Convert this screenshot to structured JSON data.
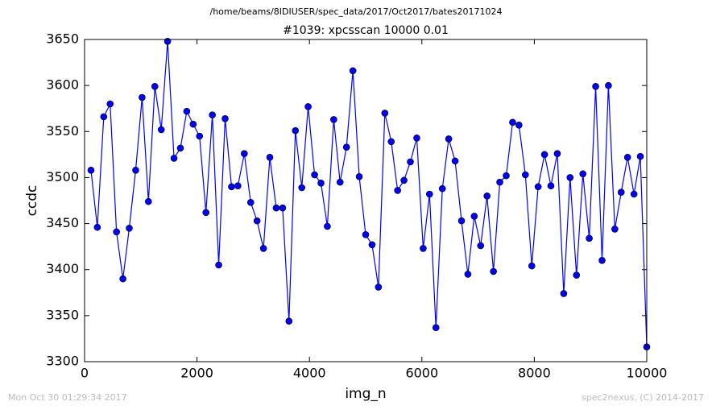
{
  "chart_data": {
    "type": "line",
    "suptitle": "/home/beams/8IDIUSER/spec_data/2017/Oct2017/bates20171024",
    "title": "#1039: xpcsscan 10000 0.01",
    "xlabel": "img_n",
    "ylabel": "ccdc",
    "footer_left": "Mon Oct 30 01:29:34 2017",
    "footer_right": "spec2nexus, (C) 2014-2017",
    "xlim": [
      0,
      10000
    ],
    "xticks": [
      0,
      2000,
      4000,
      6000,
      8000,
      10000
    ],
    "ylim": [
      3300,
      3650
    ],
    "yticks": [
      3300,
      3350,
      3400,
      3450,
      3500,
      3550,
      3600,
      3650
    ],
    "x": [
      114,
      227,
      341,
      455,
      568,
      682,
      795,
      909,
      1023,
      1136,
      1250,
      1364,
      1477,
      1591,
      1705,
      1818,
      1932,
      2045,
      2159,
      2273,
      2386,
      2500,
      2614,
      2727,
      2841,
      2955,
      3068,
      3182,
      3295,
      3409,
      3523,
      3636,
      3750,
      3864,
      3977,
      4091,
      4205,
      4318,
      4432,
      4545,
      4659,
      4773,
      4886,
      5000,
      5114,
      5227,
      5341,
      5455,
      5568,
      5682,
      5795,
      5909,
      6023,
      6136,
      6250,
      6364,
      6477,
      6591,
      6705,
      6818,
      6932,
      7045,
      7159,
      7273,
      7386,
      7500,
      7614,
      7727,
      7841,
      7955,
      8068,
      8182,
      8295,
      8409,
      8523,
      8636,
      8750,
      8864,
      8977,
      9091,
      9205,
      9318,
      9432,
      9545,
      9659,
      9773,
      9886,
      10000
    ],
    "series": [
      {
        "color": "#0000ff",
        "values": [
          3508,
          3446,
          3566,
          3580,
          3441,
          3390,
          3445,
          3508,
          3587,
          3474,
          3599,
          3552,
          3648,
          3521,
          3532,
          3572,
          3558,
          3545,
          3462,
          3568,
          3405,
          3564,
          3490,
          3491,
          3526,
          3473,
          3453,
          3423,
          3522,
          3467,
          3467,
          3344,
          3551,
          3489,
          3577,
          3503,
          3494,
          3447,
          3563,
          3495,
          3533,
          3616,
          3501,
          3438,
          3427,
          3381,
          3570,
          3539,
          3486,
          3497,
          3517,
          3543,
          3423,
          3482,
          3337,
          3488,
          3542,
          3518,
          3453,
          3395,
          3458,
          3426,
          3480,
          3398,
          3495,
          3502,
          3560,
          3557,
          3503,
          3404,
          3490,
          3525,
          3491,
          3526,
          3374,
          3500,
          3394,
          3504,
          3434,
          3599,
          3410,
          3600,
          3444,
          3484,
          3522,
          3482,
          3523,
          3316
        ]
      }
    ]
  }
}
